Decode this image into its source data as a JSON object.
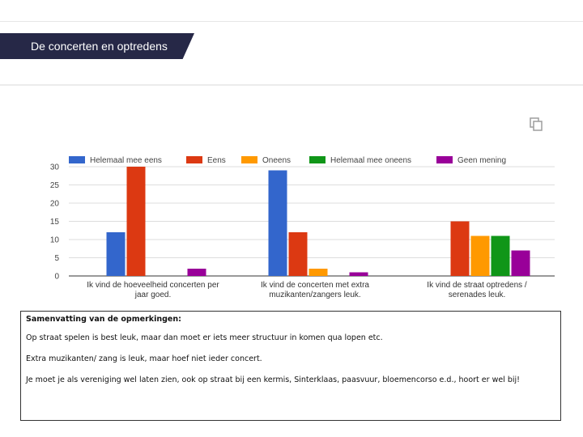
{
  "header": {
    "title": "De concerten en optredens"
  },
  "icons": {
    "copy": "copy-icon"
  },
  "chart_data": {
    "type": "bar",
    "title": "",
    "xlabel": "",
    "ylabel": "",
    "ylim": [
      0,
      30
    ],
    "yticks": [
      0,
      5,
      10,
      15,
      20,
      25,
      30
    ],
    "grid": true,
    "legend_position": "top",
    "categories": [
      [
        "Ik vind de hoeveelheid concerten per",
        "jaar goed."
      ],
      [
        "Ik vind de concerten met extra",
        "muzikanten/zangers leuk."
      ],
      [
        "Ik vind de straat optredens /",
        "serenades leuk."
      ]
    ],
    "series": [
      {
        "name": "Helemaal mee eens",
        "color": "#3366cc",
        "values": [
          12,
          29,
          0
        ]
      },
      {
        "name": "Eens",
        "color": "#dc3912",
        "values": [
          30,
          12,
          15
        ]
      },
      {
        "name": "Oneens",
        "color": "#ff9900",
        "values": [
          0,
          2,
          11
        ]
      },
      {
        "name": "Helemaal mee oneens",
        "color": "#109618",
        "values": [
          0,
          0,
          11
        ]
      },
      {
        "name": "Geen mening",
        "color": "#990099",
        "values": [
          2,
          1,
          7
        ]
      }
    ]
  },
  "summary": {
    "heading": "Samenvatting van de opmerkingen:",
    "lines": [
      "Op straat spelen is best leuk, maar dan moet er iets meer structuur in komen qua lopen etc.",
      "Extra muzikanten/ zang is leuk, maar hoef niet ieder concert.",
      "Je moet je als vereniging wel laten zien, ook op straat bij een kermis, Sinterklaas, paasvuur, bloemencorso e.d., hoort er wel bij!"
    ]
  }
}
